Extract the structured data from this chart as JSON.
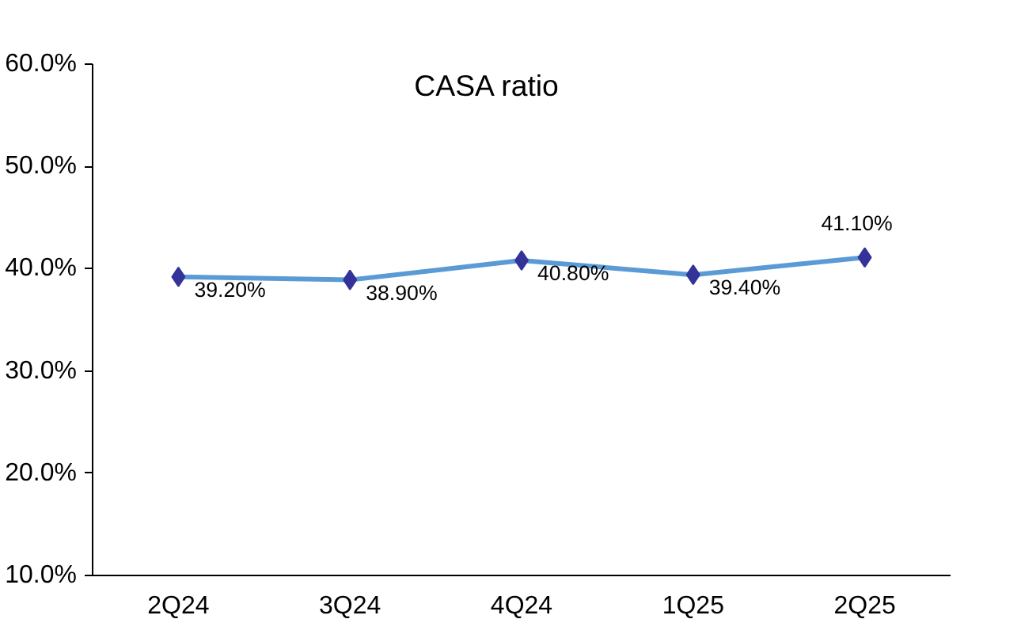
{
  "chart_data": {
    "type": "line",
    "title": "CASA ratio",
    "categories": [
      "2Q24",
      "3Q24",
      "4Q24",
      "1Q25",
      "2Q25"
    ],
    "series": [
      {
        "color": "#5b9bd5",
        "values": [
          39.2,
          38.9,
          40.8,
          39.4,
          41.1
        ],
        "value_labels": [
          "39.20%",
          "38.90%",
          "40.80%",
          "39.40%",
          "41.10%"
        ]
      }
    ],
    "ylim": [
      10,
      60
    ],
    "yticks": [
      {
        "value": 10,
        "label": "10.0%"
      },
      {
        "value": 20,
        "label": "20.0%"
      },
      {
        "value": 30,
        "label": "30.0%"
      },
      {
        "value": 40,
        "label": "40.0%"
      },
      {
        "value": 50,
        "label": "50.0%"
      },
      {
        "value": 60,
        "label": "60.0%"
      }
    ],
    "grid": false,
    "marker": "diamond",
    "line_style": "solid"
  }
}
